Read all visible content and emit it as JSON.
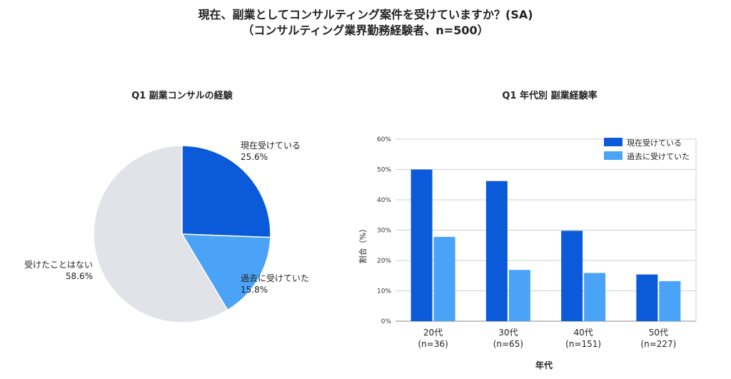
{
  "title_line1": "現在、副業としてコンサルティング案件を受けていますか？(SA)",
  "title_line2": "（コンサルティング業界勤務経験者、n=500）",
  "colors": {
    "current": "#0b5ad9",
    "past": "#4aa3f7",
    "none": "#e2e3e8"
  },
  "chart_data": [
    {
      "type": "pie",
      "title": "Q1 副業コンサルの経験",
      "slices": [
        {
          "label": "現在受けている",
          "value": 25.6,
          "value_label": "25.6%"
        },
        {
          "label": "過去に受けていた",
          "value": 15.8,
          "value_label": "15.8%"
        },
        {
          "label": "受けたことはない",
          "value": 58.6,
          "value_label": "58.6%"
        }
      ]
    },
    {
      "type": "bar",
      "title": "Q1 年代別 副業経験率",
      "xlabel": "年代",
      "ylabel": "割合（%）",
      "categories": [
        "20代",
        "30代",
        "40代",
        "50代"
      ],
      "category_sublabels": [
        "(n=36)",
        "(n=65)",
        "(n=151)",
        "(n=227)"
      ],
      "ylim": [
        0,
        60
      ],
      "yticks": [
        "0%",
        "10%",
        "20%",
        "30%",
        "40%",
        "50%",
        "60%"
      ],
      "legend_position": "top-right",
      "grid": true,
      "series": [
        {
          "name": "現在受けている",
          "values": [
            50.0,
            46.2,
            29.8,
            15.4
          ]
        },
        {
          "name": "過去に受けていた",
          "values": [
            27.8,
            16.9,
            15.9,
            13.2
          ]
        }
      ]
    }
  ]
}
